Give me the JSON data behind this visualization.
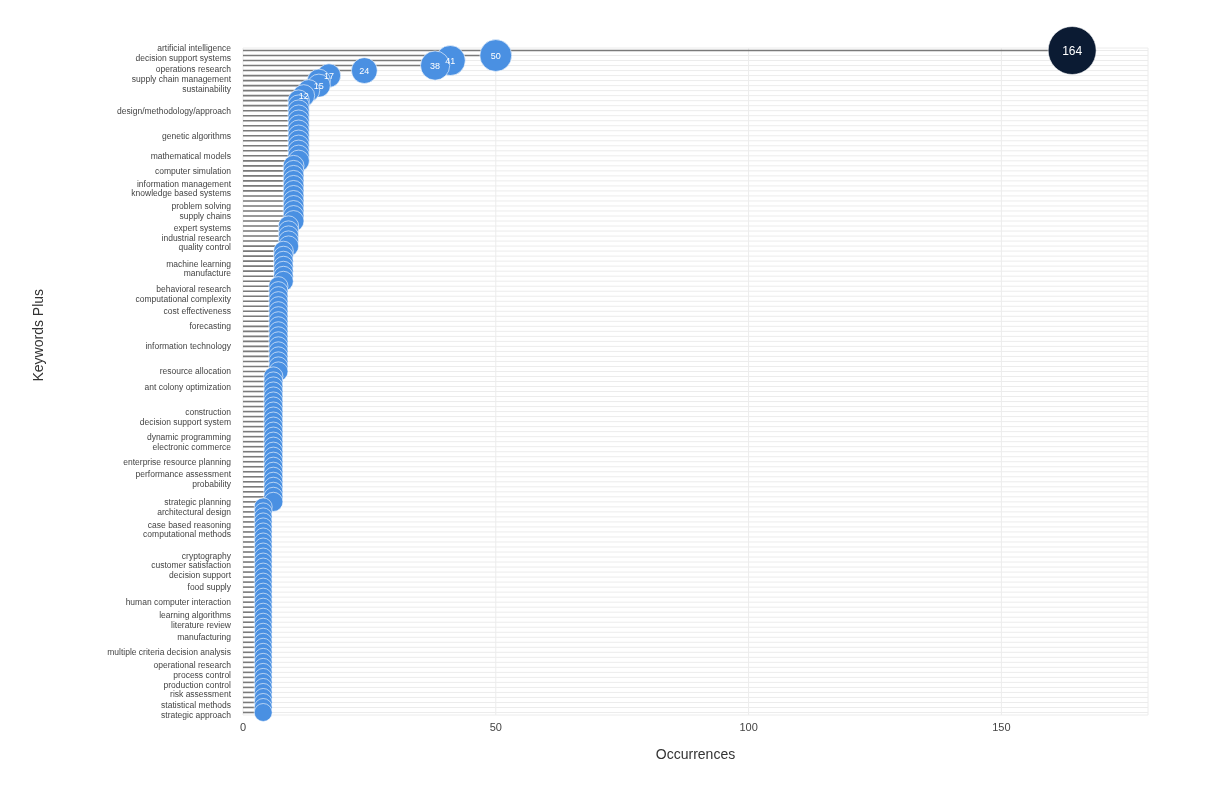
{
  "chart_data": {
    "type": "lollipop",
    "orientation": "horizontal",
    "xlabel": "Occurrences",
    "ylabel": "Keywords Plus",
    "categories": [
      "artificial intelligence",
      "decision support systems",
      null,
      null,
      "operations research",
      null,
      "supply chain management",
      "sustainability",
      null,
      null,
      null,
      null,
      "design/methodology/approach",
      null,
      null,
      null,
      null,
      "genetic algorithms",
      null,
      null,
      null,
      "mathematical models",
      null,
      null,
      "computer simulation",
      null,
      null,
      "information management",
      "knowledge based systems",
      null,
      null,
      "problem solving",
      null,
      "supply chains",
      null,
      null,
      "expert systems",
      "industrial research",
      null,
      "quality control",
      null,
      null,
      null,
      "machine learning",
      "manufacture",
      null,
      null,
      null,
      "behavioral research",
      "computational complexity",
      null,
      null,
      "cost effectiveness",
      null,
      null,
      "forecasting",
      null,
      null,
      null,
      "information technology",
      null,
      null,
      null,
      null,
      "resource allocation",
      null,
      null,
      "ant colony optimization",
      null,
      null,
      null,
      null,
      "construction",
      null,
      "decision support system",
      null,
      null,
      "dynamic programming",
      null,
      "electronic commerce",
      null,
      null,
      "enterprise resource planning",
      null,
      null,
      "performance assessment",
      "probability",
      null,
      null,
      null,
      "strategic planning",
      null,
      "architectural design",
      null,
      null,
      "case based reasoning",
      "computational methods",
      null,
      null,
      null,
      null,
      "cryptography",
      null,
      "customer satisfaction",
      "decision support",
      null,
      null,
      "food supply",
      null,
      null,
      "human computer interaction",
      null,
      null,
      "learning algorithms",
      "literature review",
      null,
      null,
      "manufacturing",
      null,
      null,
      "multiple criteria decision analysis",
      null,
      null,
      "operational research",
      null,
      "process control",
      "production control",
      null,
      "risk assessment",
      null,
      null,
      "statistical methods",
      "strategic approach"
    ],
    "values": [
      164,
      50,
      41,
      38,
      24,
      17,
      15,
      15,
      13,
      12,
      11,
      11,
      11,
      11,
      11,
      11,
      11,
      11,
      11,
      11,
      11,
      11,
      11,
      10,
      10,
      10,
      10,
      10,
      10,
      10,
      10,
      10,
      10,
      10,
      10,
      9,
      9,
      9,
      9,
      9,
      8,
      8,
      8,
      8,
      8,
      8,
      8,
      7,
      7,
      7,
      7,
      7,
      7,
      7,
      7,
      7,
      7,
      7,
      7,
      7,
      7,
      7,
      7,
      7,
      7,
      6,
      6,
      6,
      6,
      6,
      6,
      6,
      6,
      6,
      6,
      6,
      6,
      6,
      6,
      6,
      6,
      6,
      6,
      6,
      6,
      6,
      6,
      6,
      6,
      6,
      6,
      4,
      4,
      4,
      4,
      4,
      4,
      4,
      4,
      4,
      4,
      4,
      4,
      4,
      4,
      4,
      4,
      4,
      4,
      4,
      4,
      4,
      4,
      4,
      4,
      4,
      4,
      4,
      4,
      4,
      4,
      4,
      4,
      4,
      4,
      4,
      4,
      4,
      4,
      4,
      4,
      4,
      4
    ],
    "colors": [
      "#0b1b33",
      "#4a90e2",
      "#4a90e2",
      "#4a90e2",
      "#4a90e2",
      "#4a90e2",
      "#4a90e2",
      "#4a90e2",
      "#4a90e2",
      "#4a90e2",
      "#4a90e2",
      "#4a90e2",
      "#4a90e2",
      "#4a90e2",
      "#4a90e2",
      "#4a90e2",
      "#4a90e2",
      "#4a90e2",
      "#4a90e2",
      "#4a90e2",
      "#4a90e2",
      "#4a90e2",
      "#4a90e2",
      "#4a90e2",
      "#4a90e2",
      "#4a90e2",
      "#4a90e2",
      "#4a90e2",
      "#4a90e2",
      "#4a90e2",
      "#4a90e2",
      "#4a90e2",
      "#4a90e2",
      "#4a90e2",
      "#4a90e2",
      "#4a90e2",
      "#4a90e2",
      "#4a90e2",
      "#4a90e2",
      "#4a90e2",
      "#4a90e2",
      "#4a90e2",
      "#4a90e2",
      "#4a90e2",
      "#4a90e2",
      "#4a90e2",
      "#4a90e2",
      "#4a90e2",
      "#4a90e2",
      "#4a90e2",
      "#4a90e2",
      "#4a90e2",
      "#4a90e2",
      "#4a90e2",
      "#4a90e2",
      "#4a90e2",
      "#4a90e2",
      "#4a90e2",
      "#4a90e2",
      "#4a90e2",
      "#4a90e2",
      "#4a90e2",
      "#4a90e2",
      "#4a90e2",
      "#4a90e2",
      "#4a90e2",
      "#4a90e2",
      "#4a90e2",
      "#4a90e2",
      "#4a90e2",
      "#4a90e2",
      "#4a90e2",
      "#4a90e2",
      "#4a90e2",
      "#4a90e2",
      "#4a90e2",
      "#4a90e2",
      "#4a90e2",
      "#4a90e2",
      "#4a90e2",
      "#4a90e2",
      "#4a90e2",
      "#4a90e2",
      "#4a90e2",
      "#4a90e2",
      "#4a90e2",
      "#4a90e2",
      "#4a90e2",
      "#4a90e2",
      "#4a90e2",
      "#4a90e2",
      "#4a90e2",
      "#4a90e2",
      "#4a90e2",
      "#4a90e2",
      "#4a90e2",
      "#4a90e2",
      "#4a90e2",
      "#4a90e2",
      "#4a90e2",
      "#4a90e2",
      "#4a90e2",
      "#4a90e2",
      "#4a90e2",
      "#4a90e2",
      "#4a90e2",
      "#4a90e2",
      "#4a90e2",
      "#4a90e2",
      "#4a90e2",
      "#4a90e2",
      "#4a90e2",
      "#4a90e2",
      "#4a90e2",
      "#4a90e2",
      "#4a90e2",
      "#4a90e2",
      "#4a90e2",
      "#4a90e2",
      "#4a90e2",
      "#4a90e2",
      "#4a90e2",
      "#4a90e2",
      "#4a90e2",
      "#4a90e2",
      "#4a90e2",
      "#4a90e2",
      "#4a90e2",
      "#4a90e2",
      "#4a90e2",
      "#4a90e2",
      "#4a90e2",
      "#4a90e2"
    ],
    "value_labels": [
      "164",
      "50",
      "41",
      "38",
      "24",
      "17",
      null,
      "15",
      null,
      "12",
      null,
      null,
      null,
      null,
      null,
      null,
      null,
      null,
      null,
      null,
      null,
      null,
      null,
      null,
      null,
      null,
      null,
      null,
      null,
      null,
      null,
      null,
      null,
      null,
      null,
      null,
      null,
      null,
      null,
      null,
      null,
      null,
      null,
      null,
      null,
      null,
      null,
      null,
      null,
      null,
      null,
      null,
      null,
      null,
      null,
      null,
      null,
      null,
      null,
      null,
      null,
      null,
      null,
      null,
      null,
      null,
      null,
      null,
      null,
      null,
      null,
      null,
      null,
      null,
      null,
      null,
      null,
      null,
      null,
      null,
      null,
      null,
      null,
      null,
      null,
      null,
      null,
      null,
      null,
      null,
      null,
      null,
      null,
      null,
      null,
      null,
      null,
      null,
      null,
      null,
      null,
      null,
      null,
      null,
      null,
      null,
      null,
      null,
      null,
      null,
      null,
      null,
      null,
      null,
      null,
      null,
      null,
      null,
      null,
      null,
      null,
      null,
      null,
      null,
      null,
      null,
      null,
      null,
      null,
      null,
      null,
      null,
      null
    ],
    "sizes": [
      1,
      0.44,
      0.39,
      0.37,
      0.29,
      0.24,
      0.23,
      0.23,
      0.21,
      0.21,
      0.2,
      0.2,
      0.2,
      0.2,
      0.2,
      0.2,
      0.2,
      0.2,
      0.2,
      0.2,
      0.2,
      0.2,
      0.2,
      0.19,
      0.19,
      0.19,
      0.19,
      0.19,
      0.19,
      0.19,
      0.19,
      0.19,
      0.19,
      0.19,
      0.19,
      0.18,
      0.18,
      0.18,
      0.18,
      0.18,
      0.17,
      0.17,
      0.17,
      0.17,
      0.17,
      0.17,
      0.17,
      0.16,
      0.16,
      0.16,
      0.16,
      0.16,
      0.16,
      0.16,
      0.16,
      0.16,
      0.16,
      0.16,
      0.16,
      0.16,
      0.16,
      0.16,
      0.16,
      0.16,
      0.16,
      0.16,
      0.16,
      0.16,
      0.16,
      0.16,
      0.16,
      0.16,
      0.16,
      0.16,
      0.16,
      0.16,
      0.16,
      0.16,
      0.16,
      0.16,
      0.16,
      0.16,
      0.16,
      0.16,
      0.16,
      0.16,
      0.16,
      0.16,
      0.16,
      0.16,
      0.16,
      0.14,
      0.14,
      0.14,
      0.14,
      0.14,
      0.14,
      0.14,
      0.14,
      0.14,
      0.14,
      0.14,
      0.14,
      0.14,
      0.14,
      0.14,
      0.14,
      0.14,
      0.14,
      0.14,
      0.14,
      0.14,
      0.14,
      0.14,
      0.14,
      0.14,
      0.14,
      0.14,
      0.14,
      0.14,
      0.14,
      0.14,
      0.14,
      0.14,
      0.14,
      0.14,
      0.14,
      0.14,
      0.14,
      0.14,
      0.14,
      0.14,
      0.14
    ],
    "xlim": [
      0,
      179
    ],
    "xticks": [
      0,
      50,
      100,
      150
    ],
    "grid": true,
    "marker": "circle"
  }
}
